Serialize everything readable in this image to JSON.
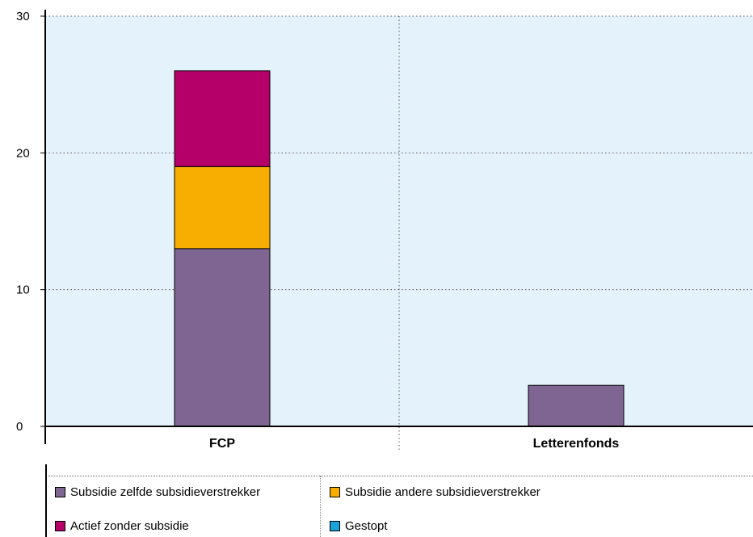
{
  "chart_data": {
    "type": "bar",
    "stacked": true,
    "categories": [
      "FCP",
      "Letterenfonds"
    ],
    "series": [
      {
        "name": "Subsidie zelfde subsidieverstrekker",
        "values": [
          13,
          3
        ],
        "color": "#7f6592"
      },
      {
        "name": "Subsidie andere subsidieverstrekker",
        "values": [
          6,
          0
        ],
        "color": "#f7ae00"
      },
      {
        "name": "Actief zonder subsidie",
        "values": [
          7,
          0
        ],
        "color": "#b5006a"
      },
      {
        "name": "Gestopt",
        "values": [
          0,
          0
        ],
        "color": "#1ba3d8"
      }
    ],
    "yticks": [
      0,
      10,
      20,
      30
    ],
    "ylim": [
      0,
      30
    ],
    "grid": true,
    "plot_background": "#e4f2fb",
    "legend_position": "bottom"
  }
}
